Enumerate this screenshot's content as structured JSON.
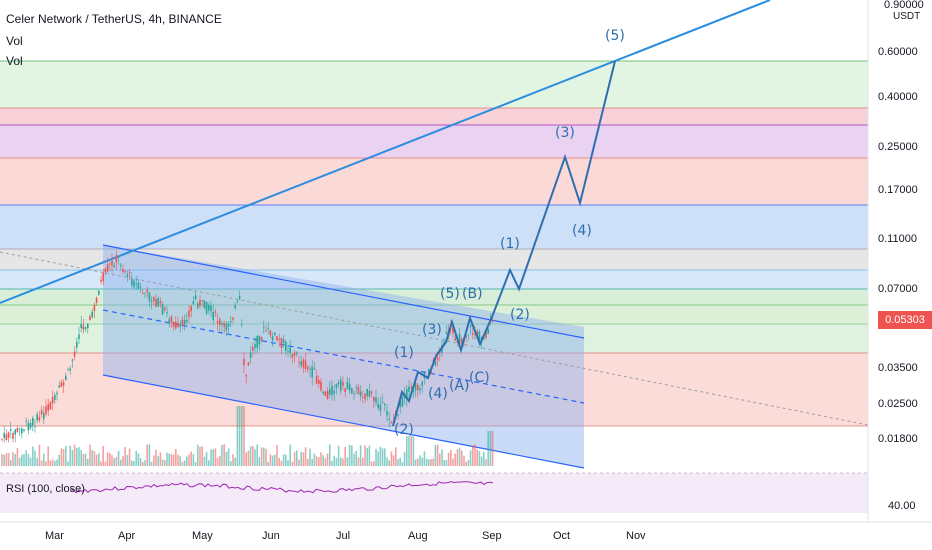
{
  "chart_data": {
    "type": "candlestick",
    "title": "Celer Network / TetherUS, 4h, BINANCE",
    "indicators": [
      "Vol",
      "Vol"
    ],
    "rsi_label": "RSI (100, close)",
    "rsi_value": "40.00",
    "unit": "USDT",
    "current_price": "0.05303",
    "y_scale": "log",
    "y_ticks": [
      "0.90000",
      "0.60000",
      "0.40000",
      "0.25000",
      "0.17000",
      "0.11000",
      "0.07000",
      "0.05303",
      "0.03500",
      "0.02500",
      "0.01800"
    ],
    "x_ticks": [
      "Mar",
      "Apr",
      "May",
      "Jun",
      "Jul",
      "Aug",
      "Sep",
      "Oct",
      "Nov"
    ],
    "wave_labels": [
      "(5)",
      "(3)",
      "(4)",
      "(1)",
      "(5)",
      "(B)",
      "(2)",
      "(3)",
      "(1)",
      "(4)",
      "(A)",
      "(C)",
      "(2)"
    ]
  },
  "colors": {
    "up": "#26a69a",
    "down": "#ef5350",
    "channel": "#2962ff",
    "wave": "#2e6fb0"
  }
}
